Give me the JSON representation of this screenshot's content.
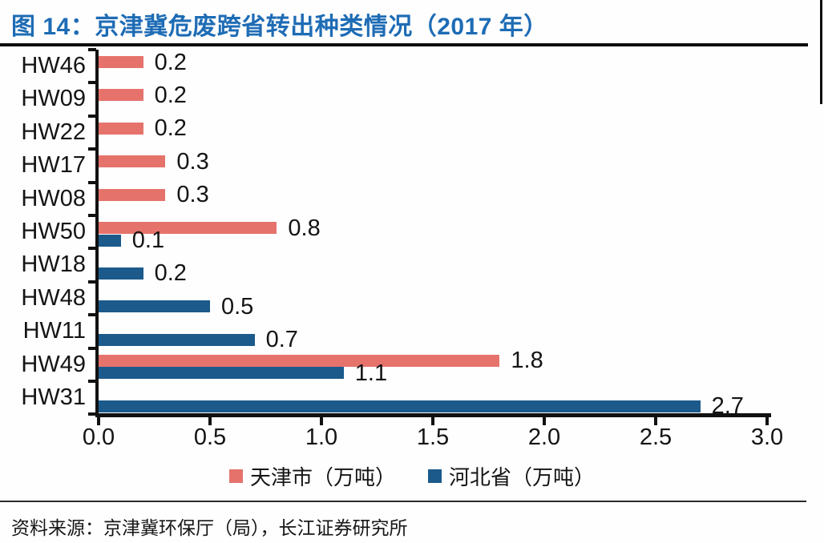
{
  "figure": {
    "title": "图 14：京津冀危废跨省转出种类情况（2017 年）",
    "source": "资料来源：京津冀环保厅（局），长江证券研究所"
  },
  "legend": {
    "items": [
      {
        "label": "天津市（万吨）",
        "series": "tianjin"
      },
      {
        "label": "河北省（万吨）",
        "series": "hebei"
      }
    ]
  },
  "colors": {
    "title_blue": "#1E6CB5",
    "tianjin_pink": "#E5736C",
    "hebei_blue": "#1B5A8B",
    "axis_black": "#111111"
  },
  "chart_data": {
    "type": "bar",
    "orientation": "horizontal",
    "title": "京津冀危废跨省转出种类情况（2017 年）",
    "unit": "万吨",
    "categories": [
      "HW46",
      "HW09",
      "HW22",
      "HW17",
      "HW08",
      "HW50",
      "HW18",
      "HW48",
      "HW11",
      "HW49",
      "HW31"
    ],
    "series": [
      {
        "name": "天津市（万吨）",
        "color": "#E5736C",
        "values": [
          0.2,
          0.2,
          0.2,
          0.3,
          0.3,
          0.8,
          null,
          null,
          null,
          1.8,
          null
        ]
      },
      {
        "name": "河北省（万吨）",
        "color": "#1B5A8B",
        "values": [
          null,
          null,
          null,
          null,
          null,
          0.1,
          0.2,
          0.5,
          0.7,
          1.1,
          2.7
        ]
      }
    ],
    "xlim": [
      0,
      3.0
    ],
    "xticks": [
      "0.0",
      "0.5",
      "1.0",
      "1.5",
      "2.0",
      "2.5",
      "3.0"
    ],
    "grid": false,
    "legend_position": "bottom",
    "value_labels": "outside-end"
  }
}
